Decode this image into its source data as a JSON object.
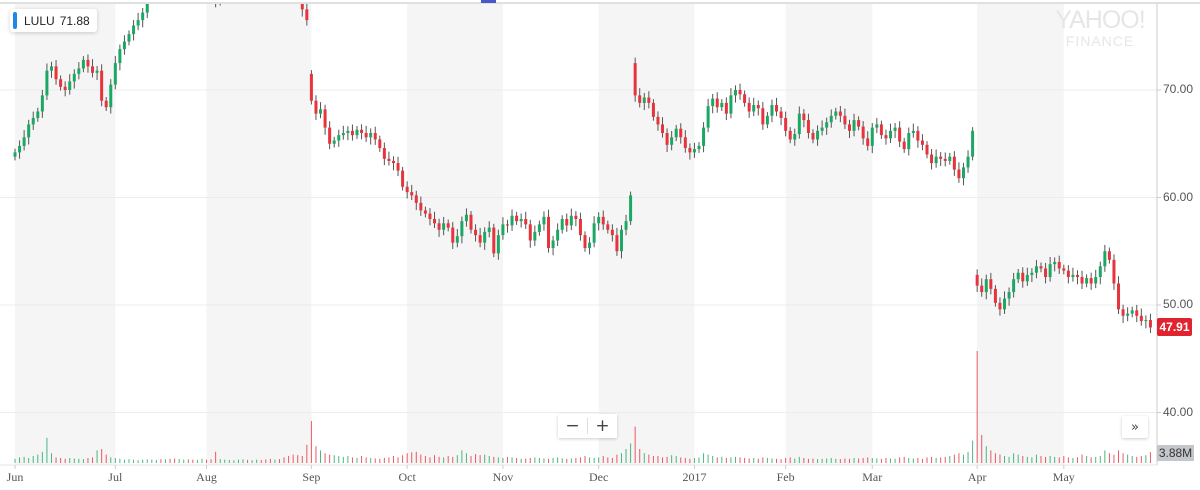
{
  "ticker_label": {
    "symbol": "LULU",
    "value": "71.88"
  },
  "watermark": {
    "line1": "YAHOO!",
    "line2": "FINANCE"
  },
  "last_price_label": "47.91",
  "volume_label": "3.88M",
  "controls": {
    "zoom_out": "−",
    "zoom_in": "+",
    "scroll_right": "»"
  },
  "colors": {
    "up": "#1aa864",
    "down": "#e8323c",
    "band": "#f5f5f5",
    "grid": "#ececec",
    "accent": "#1e88e5",
    "last_price": "#e0232e"
  },
  "chart_data": {
    "type": "candlestick",
    "ylim": [
      37,
      78
    ],
    "y_ticks": [
      "70.00",
      "60.00",
      "50.00",
      "40.00"
    ],
    "y_tick_values": [
      70,
      60,
      50,
      40
    ],
    "grid": true,
    "months": [
      {
        "label": "Jun",
        "start_index": 0
      },
      {
        "label": "Jul",
        "start_index": 22
      },
      {
        "label": "Aug",
        "start_index": 42
      },
      {
        "label": "Sep",
        "start_index": 65
      },
      {
        "label": "Oct",
        "start_index": 86
      },
      {
        "label": "Nov",
        "start_index": 107
      },
      {
        "label": "Dec",
        "start_index": 128
      },
      {
        "label": "2017",
        "start_index": 149
      },
      {
        "label": "Feb",
        "start_index": 169
      },
      {
        "label": "Mar",
        "start_index": 188
      },
      {
        "label": "Apr",
        "start_index": 211
      },
      {
        "label": "May",
        "start_index": 230
      }
    ],
    "close": [
      64.2,
      64.8,
      65.6,
      66.8,
      67.4,
      68.0,
      69.5,
      71.8,
      72.2,
      71.0,
      70.3,
      70.0,
      70.8,
      71.5,
      72.0,
      72.8,
      72.2,
      71.6,
      71.8,
      69.0,
      68.4,
      70.5,
      72.5,
      73.8,
      74.5,
      75.2,
      76.0,
      76.5,
      77.2,
      78.5,
      79.0,
      79.5,
      79.2,
      79.8,
      79.0,
      78.6,
      79.5,
      80.0,
      79.6,
      79.2,
      79.8,
      80.5,
      80.2,
      79.0,
      78.2,
      78.8,
      79.5,
      80.0,
      80.4,
      81.0,
      81.2,
      80.8,
      81.5,
      82.0,
      81.6,
      81.0,
      80.8,
      81.2,
      81.0,
      80.5,
      80.0,
      79.5,
      78.8,
      77.5,
      76.5,
      69.0,
      67.8,
      68.2,
      66.5,
      65.0,
      65.3,
      65.8,
      66.0,
      66.2,
      65.8,
      66.3,
      66.0,
      65.6,
      66.0,
      65.4,
      64.6,
      63.6,
      63.4,
      63.2,
      62.5,
      61.0,
      60.5,
      60.2,
      59.5,
      58.8,
      58.5,
      58.0,
      57.6,
      57.0,
      57.6,
      57.2,
      55.8,
      56.4,
      57.8,
      58.4,
      57.0,
      56.5,
      55.8,
      56.8,
      57.2,
      54.8,
      56.5,
      57.5,
      57.4,
      58.3,
      57.8,
      58.0,
      57.5,
      56.0,
      56.8,
      57.5,
      58.2,
      55.3,
      56.0,
      57.0,
      58.0,
      57.4,
      58.3,
      58.0,
      56.5,
      55.3,
      55.8,
      57.6,
      58.2,
      57.5,
      57.0,
      56.5,
      55.0,
      57.0,
      57.8,
      60.2,
      69.5,
      68.8,
      69.3,
      68.8,
      67.5,
      66.8,
      66.0,
      64.9,
      65.6,
      66.4,
      65.6,
      64.6,
      64.2,
      64.5,
      64.8,
      66.5,
      68.5,
      69.2,
      68.4,
      68.8,
      67.8,
      69.5,
      70.0,
      69.6,
      68.8,
      68.0,
      68.6,
      68.3,
      66.8,
      67.6,
      68.6,
      68.0,
      67.4,
      66.2,
      65.4,
      65.9,
      67.8,
      67.2,
      66.0,
      65.4,
      66.2,
      66.5,
      67.0,
      67.6,
      68.0,
      67.6,
      66.8,
      66.2,
      67.2,
      66.6,
      65.5,
      64.8,
      66.5,
      66.8,
      65.8,
      65.5,
      66.2,
      66.5,
      65.2,
      64.5,
      66.0,
      66.2,
      65.3,
      64.9,
      64.0,
      63.2,
      63.8,
      63.6,
      63.4,
      63.8,
      62.6,
      61.8,
      62.8,
      63.8,
      66.2,
      51.8,
      51.2,
      52.4,
      51.5,
      50.2,
      49.6,
      50.6,
      51.2,
      52.4,
      53.0,
      52.2,
      52.8,
      53.0,
      53.6,
      53.4,
      52.6,
      53.8,
      54.0,
      53.4,
      53.2,
      52.6,
      52.8,
      52.6,
      52.0,
      52.5,
      52.0,
      52.6,
      53.6,
      55.0,
      54.2,
      52.0,
      49.6,
      49.0,
      49.2,
      49.5,
      49.0,
      48.5,
      48.6,
      47.91
    ],
    "gap_opens": {
      "65": 71.5,
      "136": 72.5,
      "211": 52.8
    },
    "volume_millions": [
      1.5,
      2.0,
      2.2,
      1.8,
      2.5,
      3.0,
      4.0,
      9.0,
      3.5,
      2.0,
      1.8,
      1.5,
      1.8,
      1.6,
      1.5,
      1.4,
      1.8,
      2.0,
      4.5,
      5.0,
      3.0,
      2.0,
      1.8,
      1.5,
      1.2,
      1.4,
      1.2,
      1.0,
      1.2,
      1.3,
      1.2,
      1.1,
      1.4,
      1.3,
      1.5,
      1.6,
      1.4,
      1.2,
      1.3,
      1.2,
      1.1,
      1.5,
      1.2,
      1.3,
      4.0,
      1.4,
      1.2,
      1.1,
      1.0,
      1.2,
      1.3,
      1.1,
      1.0,
      1.2,
      1.1,
      1.3,
      1.5,
      1.2,
      1.4,
      2.0,
      2.5,
      3.0,
      2.8,
      2.5,
      6.5,
      15.0,
      6.0,
      4.5,
      3.5,
      3.0,
      2.8,
      2.5,
      2.2,
      2.5,
      2.0,
      1.8,
      2.5,
      2.0,
      1.8,
      1.6,
      1.5,
      1.8,
      2.0,
      2.5,
      2.0,
      2.8,
      3.5,
      3.8,
      4.0,
      3.0,
      2.5,
      2.0,
      2.8,
      2.2,
      2.0,
      2.5,
      2.2,
      2.8,
      4.5,
      3.5,
      2.5,
      3.2,
      2.8,
      3.0,
      2.5,
      2.2,
      2.0,
      1.8,
      2.2,
      2.0,
      1.8,
      1.5,
      1.6,
      1.8,
      2.0,
      1.8,
      1.6,
      1.5,
      1.8,
      2.0,
      1.7,
      1.5,
      1.6,
      1.8,
      2.0,
      2.5,
      2.0,
      1.8,
      2.0,
      2.5,
      2.0,
      1.8,
      3.0,
      3.5,
      5.0,
      7.0,
      13.0,
      5.0,
      3.5,
      3.0,
      2.5,
      2.5,
      2.0,
      2.2,
      2.8,
      2.5,
      2.0,
      1.8,
      1.5,
      1.8,
      2.0,
      3.5,
      3.0,
      2.5,
      2.0,
      2.2,
      1.8,
      2.0,
      2.2,
      2.0,
      1.8,
      1.6,
      1.8,
      1.5,
      2.0,
      1.8,
      1.6,
      1.5,
      1.4,
      1.8,
      2.0,
      1.6,
      2.2,
      1.8,
      1.5,
      1.6,
      1.4,
      1.5,
      1.6,
      1.8,
      1.5,
      1.4,
      1.6,
      1.5,
      1.8,
      1.6,
      1.8,
      2.0,
      1.8,
      1.6,
      1.5,
      1.8,
      1.6,
      1.5,
      2.0,
      2.2,
      1.8,
      1.6,
      1.8,
      1.5,
      2.0,
      2.2,
      1.8,
      2.0,
      2.2,
      2.5,
      3.0,
      3.5,
      3.0,
      4.0,
      8.0,
      40.0,
      10.0,
      6.0,
      4.5,
      3.5,
      3.0,
      2.5,
      2.2,
      3.5,
      3.0,
      2.5,
      2.2,
      2.0,
      3.0,
      2.5,
      2.2,
      2.5,
      2.2,
      2.0,
      2.5,
      2.0,
      1.8,
      2.0,
      3.0,
      2.5,
      2.0,
      2.2,
      2.5,
      4.5,
      3.5,
      3.0,
      4.5,
      3.5,
      3.0,
      2.5,
      2.2,
      2.5,
      2.8,
      3.88
    ]
  }
}
